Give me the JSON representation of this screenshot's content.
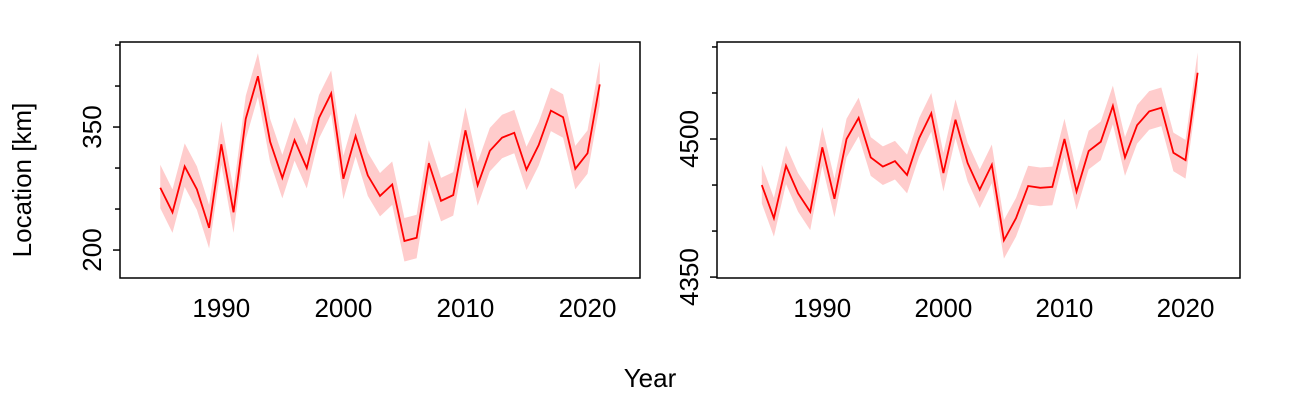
{
  "xlabel": "Year",
  "ylabel": "Location [km]",
  "chart_data": [
    {
      "type": "line",
      "x": [
        1985,
        1986,
        1987,
        1988,
        1989,
        1990,
        1991,
        1992,
        1993,
        1994,
        1995,
        1996,
        1997,
        1998,
        1999,
        2000,
        2001,
        2002,
        2003,
        2004,
        2005,
        2006,
        2007,
        2008,
        2009,
        2010,
        2011,
        2012,
        2013,
        2014,
        2015,
        2016,
        2017,
        2018,
        2019,
        2020,
        2021
      ],
      "series": [
        {
          "color": "#ff0000",
          "band_color": "#ffcccc",
          "values": [
            276,
            246,
            302,
            274,
            227,
            329,
            246,
            360,
            412,
            332,
            288,
            334,
            300,
            361,
            391,
            287,
            339,
            291,
            266,
            280,
            211,
            215,
            306,
            260,
            267,
            346,
            279,
            321,
            337,
            343,
            298,
            328,
            370,
            362,
            299,
            318,
            402
          ],
          "lower": [
            251,
            221,
            277,
            249,
            202,
            304,
            221,
            335,
            387,
            307,
            263,
            309,
            275,
            336,
            366,
            262,
            314,
            266,
            241,
            255,
            186,
            190,
            281,
            235,
            242,
            321,
            254,
            296,
            312,
            318,
            273,
            303,
            345,
            337,
            274,
            293,
            377
          ],
          "upper": [
            304,
            274,
            330,
            302,
            255,
            357,
            274,
            388,
            440,
            360,
            316,
            362,
            328,
            389,
            419,
            315,
            367,
            319,
            294,
            308,
            239,
            243,
            334,
            288,
            295,
            374,
            307,
            349,
            365,
            371,
            326,
            356,
            398,
            390,
            327,
            346,
            430
          ]
        }
      ],
      "xlim": [
        1981.7,
        2024.3
      ],
      "xticks": [
        1990,
        2000,
        2010,
        2020
      ],
      "ylim": [
        165.9,
        453.7
      ],
      "yticks": [
        200,
        350
      ],
      "minor_yticks": [
        250,
        300,
        400,
        450
      ]
    },
    {
      "type": "line",
      "x": [
        1985,
        1986,
        1987,
        1988,
        1989,
        1990,
        1991,
        1992,
        1993,
        1994,
        1995,
        1996,
        1997,
        1998,
        1999,
        2000,
        2001,
        2002,
        2003,
        2004,
        2005,
        2006,
        2007,
        2008,
        2009,
        2010,
        2011,
        2012,
        2013,
        2014,
        2015,
        2016,
        2017,
        2018,
        2019,
        2020,
        2021
      ],
      "series": [
        {
          "color": "#ff0000",
          "band_color": "#ffcccc",
          "values": [
            4450,
            4414,
            4471,
            4441,
            4421,
            4491,
            4435,
            4500,
            4523,
            4480,
            4470,
            4476,
            4461,
            4501,
            4528,
            4463,
            4521,
            4474,
            4445,
            4472,
            4390,
            4414,
            4449,
            4447,
            4448,
            4500,
            4443,
            4487,
            4497,
            4536,
            4480,
            4515,
            4530,
            4534,
            4485,
            4477,
            4572
          ],
          "lower": [
            4430,
            4394,
            4451,
            4421,
            4401,
            4471,
            4415,
            4480,
            4503,
            4460,
            4450,
            4456,
            4441,
            4481,
            4508,
            4443,
            4501,
            4454,
            4425,
            4452,
            4370,
            4394,
            4429,
            4427,
            4428,
            4480,
            4423,
            4467,
            4477,
            4516,
            4460,
            4495,
            4510,
            4514,
            4465,
            4457,
            4552
          ],
          "upper": [
            4472,
            4436,
            4493,
            4463,
            4443,
            4513,
            4457,
            4522,
            4545,
            4502,
            4492,
            4498,
            4483,
            4523,
            4550,
            4485,
            4543,
            4496,
            4467,
            4494,
            4412,
            4436,
            4471,
            4469,
            4470,
            4522,
            4465,
            4509,
            4519,
            4558,
            4502,
            4537,
            4552,
            4556,
            4507,
            4499,
            4594
          ]
        }
      ],
      "xlim": [
        1981.3,
        2024.5
      ],
      "xticks": [
        1990,
        2000,
        2010,
        2020
      ],
      "ylim": [
        4349,
        4605.4
      ],
      "yticks": [
        4350,
        4500
      ],
      "minor_yticks": [
        4400,
        4450,
        4550,
        4600
      ]
    }
  ]
}
